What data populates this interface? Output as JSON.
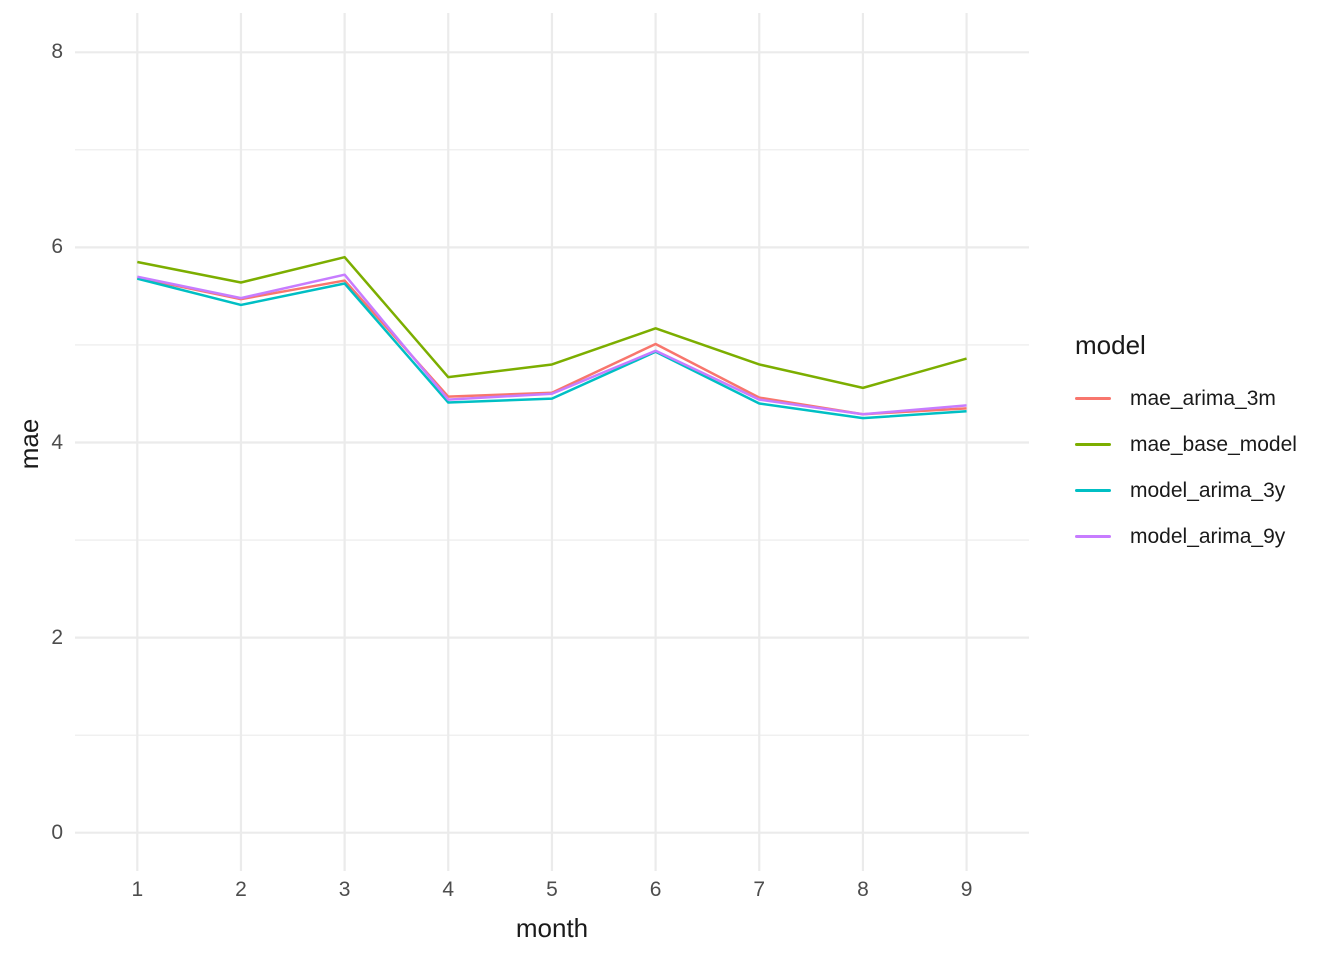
{
  "chart_data": {
    "type": "line",
    "title": "",
    "xlabel": "month",
    "ylabel": "mae",
    "x": [
      1,
      2,
      3,
      4,
      5,
      6,
      7,
      8,
      9
    ],
    "x_tick_labels": [
      "1",
      "2",
      "3",
      "4",
      "5",
      "6",
      "7",
      "8",
      "9"
    ],
    "y_tick_values": [
      0,
      2,
      4,
      6,
      8
    ],
    "y_tick_labels": [
      "0",
      "2",
      "4",
      "6",
      "8"
    ],
    "y_minor_values": [
      1,
      3,
      5,
      7
    ],
    "xlim": [
      1,
      9
    ],
    "ylim": [
      0,
      8
    ],
    "grid": true,
    "legend_position": "right",
    "legend_title": "model",
    "series": [
      {
        "name": "mae_arima_3m",
        "color": "#F8766D",
        "values": [
          5.69,
          5.47,
          5.66,
          4.47,
          4.51,
          5.01,
          4.46,
          4.29,
          4.35
        ]
      },
      {
        "name": "mae_base_model",
        "color": "#7CAE00",
        "values": [
          5.85,
          5.64,
          5.9,
          4.67,
          4.8,
          5.17,
          4.8,
          4.56,
          4.86
        ]
      },
      {
        "name": "model_arima_3y",
        "color": "#00BFC4",
        "values": [
          5.68,
          5.41,
          5.63,
          4.41,
          4.45,
          4.93,
          4.4,
          4.25,
          4.32
        ]
      },
      {
        "name": "model_arima_9y",
        "color": "#C77CFF",
        "values": [
          5.7,
          5.48,
          5.72,
          4.44,
          4.5,
          4.94,
          4.44,
          4.29,
          4.38
        ]
      }
    ],
    "colors": {
      "gridline": "#EBEBEB",
      "tick_label": "#4D4D4D",
      "axis_title": "#1A1A1A",
      "legend_text": "#1A1A1A",
      "background": "#FFFFFF"
    }
  }
}
